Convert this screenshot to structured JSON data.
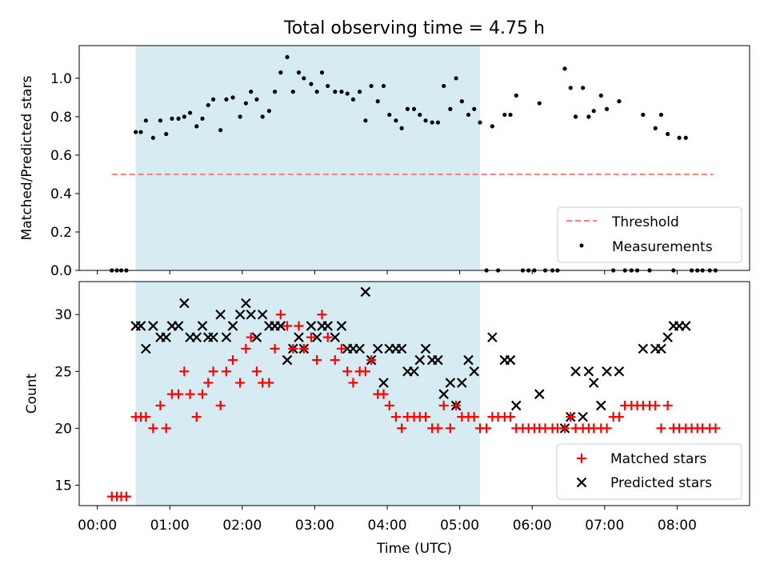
{
  "title": "Total observing time = 4.75 h",
  "colors": {
    "shade": "#add8e6",
    "threshold": "#ff7f7f",
    "matched": "#ff0000",
    "predicted": "#000000",
    "measurements": "#000000"
  },
  "chart_data": [
    {
      "type": "scatter",
      "ylabel": "Matched/Predicted stars",
      "xlim": [
        -0.25,
        9.0
      ],
      "ylim": [
        0.0,
        1.17
      ],
      "yticks": [
        0.0,
        0.2,
        0.4,
        0.6,
        0.8,
        1.0
      ],
      "ytick_labels": [
        "0.0",
        "0.2",
        "0.4",
        "0.6",
        "0.8",
        "1.0"
      ],
      "shaded_span": [
        0.53,
        5.28
      ],
      "threshold": {
        "y": 0.5,
        "x_range": [
          0.2,
          8.5
        ]
      },
      "legend": [
        "Threshold",
        "Measurements"
      ],
      "legend_position": "bottom-right",
      "series": [
        {
          "name": "Measurements",
          "marker": "dot",
          "x": [
            0.2,
            0.27,
            0.33,
            0.4,
            0.53,
            0.6,
            0.67,
            0.77,
            0.87,
            0.95,
            1.03,
            1.12,
            1.2,
            1.28,
            1.37,
            1.45,
            1.53,
            1.6,
            1.7,
            1.78,
            1.87,
            1.97,
            2.05,
            2.12,
            2.2,
            2.28,
            2.37,
            2.45,
            2.53,
            2.62,
            2.7,
            2.78,
            2.85,
            2.95,
            3.03,
            3.1,
            3.18,
            3.28,
            3.37,
            3.45,
            3.53,
            3.62,
            3.7,
            3.78,
            3.87,
            3.95,
            4.03,
            4.12,
            4.2,
            4.28,
            4.37,
            4.45,
            4.53,
            4.62,
            4.7,
            4.78,
            4.87,
            4.95,
            5.03,
            5.12,
            5.2,
            5.28,
            5.37,
            5.45,
            5.53,
            5.62,
            5.7,
            5.78,
            5.87,
            5.95,
            6.03,
            6.1,
            6.18,
            6.28,
            6.35,
            6.45,
            6.53,
            6.6,
            6.7,
            6.78,
            6.85,
            6.95,
            7.03,
            7.12,
            7.2,
            7.28,
            7.37,
            7.45,
            7.53,
            7.62,
            7.7,
            7.78,
            7.87,
            7.95,
            8.03,
            8.12,
            8.2,
            8.28,
            8.35,
            8.45,
            8.53
          ],
          "y": [
            0.0,
            0.0,
            0.0,
            0.0,
            0.72,
            0.72,
            0.78,
            0.69,
            0.78,
            0.71,
            0.79,
            0.79,
            0.8,
            0.82,
            0.75,
            0.79,
            0.86,
            0.89,
            0.73,
            0.89,
            0.9,
            0.8,
            0.87,
            0.93,
            0.89,
            0.8,
            0.83,
            0.93,
            1.03,
            1.11,
            0.93,
            1.03,
            1.0,
            0.97,
            0.93,
            1.03,
            0.96,
            0.93,
            0.93,
            0.92,
            0.89,
            0.93,
            0.78,
            0.96,
            0.88,
            0.96,
            0.81,
            0.78,
            0.74,
            0.84,
            0.84,
            0.81,
            0.78,
            0.77,
            0.77,
            0.96,
            0.84,
            1.0,
            0.88,
            0.81,
            0.84,
            0.77,
            0.0,
            0.75,
            0.0,
            0.81,
            0.81,
            0.91,
            0.0,
            0.0,
            0.0,
            0.87,
            0.0,
            0.0,
            0.0,
            1.05,
            0.95,
            0.8,
            0.95,
            0.8,
            0.83,
            0.91,
            0.84,
            0.0,
            0.88,
            0.0,
            0.0,
            0.0,
            0.81,
            0.0,
            0.74,
            0.81,
            0.71,
            0.0,
            0.69,
            0.69,
            0.0,
            0.0,
            0.0,
            0.0,
            0.0
          ]
        }
      ]
    },
    {
      "type": "scatter",
      "xlabel": "Time (UTC)",
      "ylabel": "Count",
      "xlim": [
        -0.25,
        9.0
      ],
      "ylim": [
        13.2,
        32.9
      ],
      "xticks": [
        0,
        1,
        2,
        3,
        4,
        5,
        6,
        7,
        8
      ],
      "xtick_labels": [
        "00:00",
        "01:00",
        "02:00",
        "03:00",
        "04:00",
        "05:00",
        "06:00",
        "07:00",
        "08:00"
      ],
      "yticks": [
        15,
        20,
        25,
        30
      ],
      "ytick_labels": [
        "15",
        "20",
        "25",
        "30"
      ],
      "shaded_span": [
        0.53,
        5.28
      ],
      "legend": [
        "Matched stars",
        "Predicted stars"
      ],
      "legend_position": "bottom-right",
      "series": [
        {
          "name": "Matched stars",
          "marker": "plus",
          "x": [
            0.2,
            0.27,
            0.33,
            0.4,
            0.53,
            0.6,
            0.67,
            0.77,
            0.87,
            0.95,
            1.03,
            1.12,
            1.2,
            1.28,
            1.37,
            1.45,
            1.53,
            1.6,
            1.7,
            1.78,
            1.87,
            1.97,
            2.05,
            2.12,
            2.2,
            2.28,
            2.37,
            2.45,
            2.53,
            2.62,
            2.7,
            2.78,
            2.85,
            2.95,
            3.03,
            3.1,
            3.18,
            3.28,
            3.37,
            3.45,
            3.53,
            3.62,
            3.7,
            3.78,
            3.87,
            3.95,
            4.03,
            4.12,
            4.2,
            4.28,
            4.37,
            4.45,
            4.53,
            4.62,
            4.7,
            4.78,
            4.87,
            4.95,
            5.03,
            5.12,
            5.2,
            5.28,
            5.37,
            5.45,
            5.53,
            5.62,
            5.7,
            5.78,
            5.87,
            5.95,
            6.03,
            6.1,
            6.18,
            6.28,
            6.35,
            6.45,
            6.53,
            6.6,
            6.7,
            6.78,
            6.85,
            6.95,
            7.03,
            7.12,
            7.2,
            7.28,
            7.37,
            7.45,
            7.53,
            7.62,
            7.7,
            7.78,
            7.87,
            7.95,
            8.03,
            8.12,
            8.2,
            8.28,
            8.35,
            8.45,
            8.53
          ],
          "y": [
            14,
            14,
            14,
            14,
            21,
            21,
            21,
            20,
            22,
            20,
            23,
            23,
            25,
            23,
            21,
            23,
            24,
            25,
            22,
            25,
            26,
            24,
            27,
            28,
            25,
            24,
            24,
            27,
            30,
            29,
            27,
            29,
            27,
            28,
            26,
            30,
            28,
            26,
            27,
            25,
            24,
            25,
            25,
            26,
            23,
            23,
            22,
            21,
            20,
            21,
            21,
            21,
            21,
            20,
            20,
            22,
            20,
            22,
            21,
            21,
            21,
            20,
            20,
            21,
            21,
            21,
            21,
            20,
            20,
            20,
            20,
            20,
            20,
            20,
            20,
            20,
            21,
            20,
            20,
            20,
            20,
            20,
            20,
            21,
            21,
            22,
            22,
            22,
            22,
            22,
            22,
            20,
            22,
            20,
            20,
            20,
            20,
            20,
            20,
            20,
            20
          ]
        },
        {
          "name": "Predicted stars",
          "marker": "x",
          "x": [
            0.53,
            0.6,
            0.67,
            0.77,
            0.87,
            0.95,
            1.03,
            1.12,
            1.2,
            1.28,
            1.37,
            1.45,
            1.53,
            1.6,
            1.7,
            1.78,
            1.87,
            1.97,
            2.05,
            2.12,
            2.2,
            2.28,
            2.37,
            2.45,
            2.53,
            2.62,
            2.7,
            2.78,
            2.85,
            2.95,
            3.03,
            3.1,
            3.18,
            3.28,
            3.37,
            3.45,
            3.53,
            3.62,
            3.7,
            3.78,
            3.87,
            3.95,
            4.03,
            4.12,
            4.2,
            4.28,
            4.37,
            4.45,
            4.53,
            4.62,
            4.7,
            4.78,
            4.87,
            4.95,
            5.03,
            5.12,
            5.2,
            5.45,
            5.62,
            5.7,
            5.78,
            6.1,
            6.45,
            6.53,
            6.6,
            6.7,
            6.78,
            6.85,
            6.95,
            7.03,
            7.2,
            7.53,
            7.7,
            7.78,
            7.87,
            7.95,
            8.03,
            8.12
          ],
          "y": [
            29,
            29,
            27,
            29,
            28,
            28,
            29,
            29,
            31,
            28,
            28,
            29,
            28,
            28,
            30,
            28,
            29,
            30,
            31,
            30,
            28,
            30,
            29,
            29,
            29,
            26,
            27,
            28,
            27,
            29,
            28,
            29,
            29,
            28,
            29,
            27,
            27,
            27,
            32,
            26,
            27,
            24,
            27,
            27,
            27,
            25,
            25,
            26,
            27,
            26,
            26,
            23,
            24,
            22,
            24,
            26,
            25,
            28,
            26,
            26,
            22,
            23,
            20,
            21,
            25,
            21,
            25,
            24,
            22,
            25,
            25,
            27,
            27,
            27,
            28,
            29,
            29,
            29
          ]
        }
      ]
    }
  ]
}
